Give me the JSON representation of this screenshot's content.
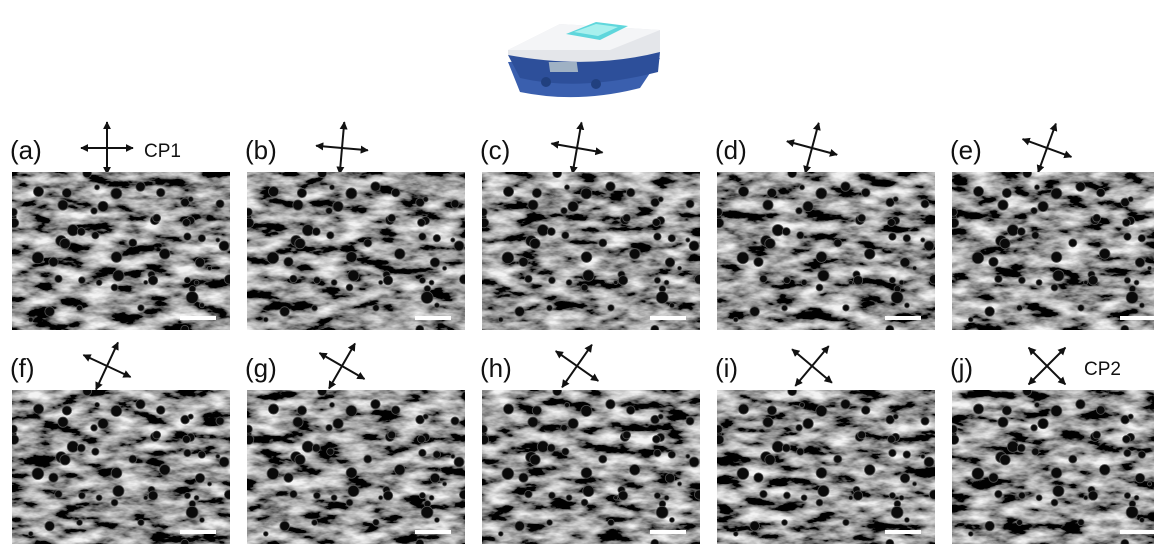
{
  "panels": [
    {
      "label": "(a)",
      "tag": "CP1"
    },
    {
      "label": "(b)"
    },
    {
      "label": "(c)"
    },
    {
      "label": "(d)"
    },
    {
      "label": "(e)"
    },
    {
      "label": "(f)"
    },
    {
      "label": "(g)"
    },
    {
      "label": "(h)"
    },
    {
      "label": "(i)"
    },
    {
      "label": "(j)",
      "tag": "CP2"
    }
  ]
}
